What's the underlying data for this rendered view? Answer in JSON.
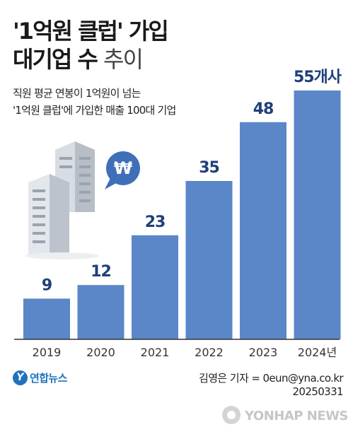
{
  "title": {
    "line1": "'1억원 클럽' 가입",
    "line2_bold": "대기업 수",
    "line2_light": "추이"
  },
  "subtitle": {
    "line1": "직원 평균 연봉이 1억원이 넘는",
    "line2": "'1억원 클럽'에 가입한 매출 100대 기업"
  },
  "chart_data": {
    "type": "bar",
    "categories": [
      "2019",
      "2020",
      "2021",
      "2022",
      "2023",
      "2024년"
    ],
    "values": [
      9,
      12,
      23,
      35,
      48,
      55
    ],
    "value_labels": [
      "9",
      "12",
      "23",
      "35",
      "48",
      "55개사"
    ],
    "title": "'1억원 클럽' 가입 대기업 수 추이",
    "ylim": [
      0,
      55
    ],
    "grid": false,
    "colors": {
      "bar": "#5b87c9",
      "value": "#1f3f7a",
      "axis": "#333333"
    }
  },
  "illustration": {
    "icon": "won-speech-bubble-icon",
    "symbol": "₩",
    "buildings": "office-buildings-icon"
  },
  "footer": {
    "logo_letter": "Y",
    "logo": "연합뉴스",
    "credit_line1": "김영은 기자 = 0eun@yna.co.kr",
    "credit_line2": "20250331",
    "watermark": "YONHAP NEWS"
  }
}
